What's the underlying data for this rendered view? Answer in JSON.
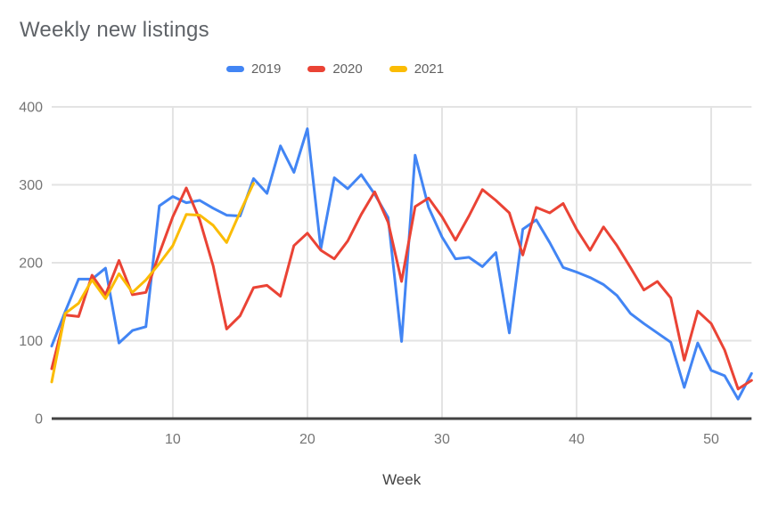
{
  "title": "Weekly new listings",
  "colors": {
    "title_text": "#5f6368",
    "legend_text": "#616161",
    "tick_text": "#757575",
    "axis_label_text": "#424242",
    "gridline": "#e3e3e3",
    "axis_line": "#424242",
    "background": "#ffffff"
  },
  "chart_data": {
    "type": "line",
    "title": "Weekly new listings",
    "xlabel": "Week",
    "ylabel": "",
    "x_range": [
      1,
      53
    ],
    "y_range": [
      0,
      400
    ],
    "x_ticks": [
      10,
      20,
      30,
      40,
      50
    ],
    "y_ticks": [
      0,
      100,
      200,
      300,
      400
    ],
    "grid": true,
    "legend_position": "top",
    "series": [
      {
        "name": "2019",
        "color": "#4285f4",
        "start_week": 1,
        "values": [
          93,
          137,
          179,
          179,
          193,
          97,
          113,
          118,
          273,
          285,
          277,
          280,
          270,
          261,
          260,
          308,
          289,
          350,
          316,
          372,
          218,
          309,
          295,
          313,
          288,
          258,
          99,
          338,
          271,
          233,
          205,
          207,
          195,
          213,
          110,
          243,
          255,
          226,
          194,
          188,
          181,
          172,
          158,
          135,
          122,
          110,
          98,
          40,
          97,
          62,
          55,
          25,
          58
        ]
      },
      {
        "name": "2020",
        "color": "#ea4335",
        "start_week": 1,
        "values": [
          64,
          133,
          131,
          184,
          159,
          203,
          159,
          162,
          212,
          259,
          296,
          255,
          196,
          115,
          132,
          168,
          171,
          157,
          222,
          238,
          216,
          205,
          228,
          262,
          291,
          252,
          176,
          272,
          283,
          259,
          229,
          260,
          294,
          280,
          264,
          210,
          271,
          264,
          276,
          243,
          216,
          246,
          222,
          194,
          165,
          176,
          155,
          75,
          138,
          122,
          88,
          38,
          49
        ]
      },
      {
        "name": "2021",
        "color": "#fbbc04",
        "start_week": 1,
        "values": [
          47,
          135,
          148,
          178,
          154,
          186,
          162,
          178,
          199,
          222,
          262,
          261,
          248,
          226,
          265,
          302
        ]
      }
    ]
  }
}
